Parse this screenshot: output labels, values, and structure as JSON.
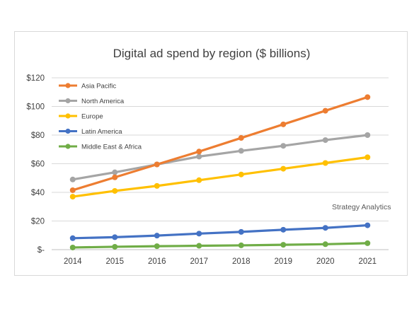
{
  "chart_data": {
    "type": "line",
    "title": "Digital ad spend by region ($ billions)",
    "xlabel": "",
    "ylabel": "",
    "x": [
      "2014",
      "2015",
      "2016",
      "2017",
      "2018",
      "2019",
      "2020",
      "2021"
    ],
    "ylim": [
      0,
      120
    ],
    "yticks": [
      0,
      20,
      40,
      60,
      80,
      100,
      120
    ],
    "ytick_labels": [
      "$-",
      "$20",
      "$40",
      "$60",
      "$80",
      "$100",
      "$120"
    ],
    "grid": true,
    "legend_position": "top-left",
    "series": [
      {
        "name": "Asia Pacific",
        "color": "#ed7d31",
        "values": [
          41.5,
          50.5,
          59.5,
          68.5,
          78,
          87.5,
          97,
          106.5
        ]
      },
      {
        "name": "North America",
        "color": "#a5a5a5",
        "values": [
          49,
          54,
          59.5,
          65,
          69,
          72.5,
          76.5,
          80
        ]
      },
      {
        "name": "Europe",
        "color": "#ffc000",
        "values": [
          37,
          41,
          44.5,
          48.5,
          52.5,
          56.5,
          60.5,
          64.5
        ]
      },
      {
        "name": "Latin America",
        "color": "#4472c4",
        "values": [
          8,
          8.7,
          9.8,
          11.2,
          12.4,
          13.9,
          15.2,
          17
        ]
      },
      {
        "name": "Middle East & Africa",
        "color": "#70ad47",
        "values": [
          1.5,
          2,
          2.4,
          2.7,
          3,
          3.4,
          3.8,
          4.5
        ]
      }
    ],
    "annotations": [
      "Strategy Analytics"
    ]
  }
}
